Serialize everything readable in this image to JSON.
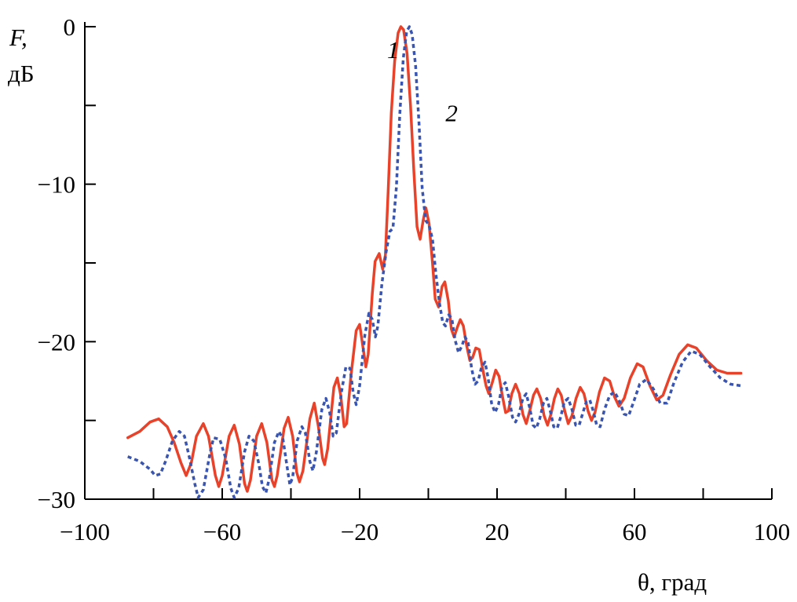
{
  "chart_data": {
    "type": "line",
    "xlabel": "θ, град",
    "ylabel_line1": "F,",
    "ylabel_line2": "дБ",
    "xlim": [
      -100,
      100
    ],
    "ylim": [
      -30,
      0
    ],
    "x_ticks": [
      -100,
      -80,
      -60,
      -40,
      -20,
      0,
      20,
      40,
      60,
      80,
      100
    ],
    "x_tick_labels": [
      "−100",
      "−60",
      "−20",
      "20",
      "60",
      "100"
    ],
    "x_tick_label_values": [
      -100,
      -60,
      -20,
      20,
      60,
      100
    ],
    "y_ticks": [
      0,
      -5,
      -10,
      -15,
      -20,
      -25,
      -30
    ],
    "y_tick_labels": [
      "0",
      "−10",
      "−20",
      "−30"
    ],
    "y_tick_label_values": [
      0,
      -10,
      -20,
      -30
    ],
    "grid": false,
    "series": [
      {
        "name": "1",
        "color": "#e8432a",
        "style": "solid",
        "points": [
          [
            -87.5,
            -26.1
          ],
          [
            -84,
            -25.7
          ],
          [
            -81,
            -25.1
          ],
          [
            -78.5,
            -24.9
          ],
          [
            -76,
            -25.4
          ],
          [
            -74,
            -26.4
          ],
          [
            -72,
            -27.7
          ],
          [
            -70.5,
            -28.5
          ],
          [
            -69,
            -27.7
          ],
          [
            -67.5,
            -26
          ],
          [
            -65.5,
            -25.2
          ],
          [
            -64,
            -26
          ],
          [
            -62,
            -28.5
          ],
          [
            -61,
            -29.2
          ],
          [
            -60,
            -28.5
          ],
          [
            -58,
            -26
          ],
          [
            -56.5,
            -25.3
          ],
          [
            -55,
            -26.5
          ],
          [
            -53.5,
            -29
          ],
          [
            -52.7,
            -29.5
          ],
          [
            -51.8,
            -28.8
          ],
          [
            -50,
            -26
          ],
          [
            -48.5,
            -25.2
          ],
          [
            -47,
            -26.4
          ],
          [
            -45.5,
            -28.8
          ],
          [
            -44.8,
            -29.2
          ],
          [
            -44,
            -28.5
          ],
          [
            -42,
            -25.5
          ],
          [
            -40.8,
            -24.8
          ],
          [
            -39.5,
            -26
          ],
          [
            -38.3,
            -28.3
          ],
          [
            -37.5,
            -28.9
          ],
          [
            -36.5,
            -28.2
          ],
          [
            -34.5,
            -24.9
          ],
          [
            -33.2,
            -23.9
          ],
          [
            -32,
            -25.4
          ],
          [
            -30.8,
            -27.4
          ],
          [
            -30.2,
            -27.8
          ],
          [
            -29.3,
            -26.8
          ],
          [
            -27.5,
            -22.9
          ],
          [
            -26.5,
            -22.3
          ],
          [
            -25.5,
            -23.4
          ],
          [
            -24.5,
            -25.4
          ],
          [
            -23.8,
            -25.2
          ],
          [
            -22.5,
            -22.1
          ],
          [
            -21,
            -19.3
          ],
          [
            -20,
            -18.9
          ],
          [
            -19,
            -20.4
          ],
          [
            -18.2,
            -21.6
          ],
          [
            -17.5,
            -20.8
          ],
          [
            -16.3,
            -16.9
          ],
          [
            -15.5,
            -14.9
          ],
          [
            -14.3,
            -14.4
          ],
          [
            -13.3,
            -15.4
          ],
          [
            -12.5,
            -14.5
          ],
          [
            -11.7,
            -10.5
          ],
          [
            -10.8,
            -5.5
          ],
          [
            -9.8,
            -2.2
          ],
          [
            -8.8,
            -0.4
          ],
          [
            -8,
            0
          ],
          [
            -7.2,
            -0.2
          ],
          [
            -6.2,
            -1.7
          ],
          [
            -5.2,
            -5
          ],
          [
            -4.2,
            -9.2
          ],
          [
            -3.3,
            -12.7
          ],
          [
            -2.4,
            -13.5
          ],
          [
            -1.5,
            -12.3
          ],
          [
            -0.7,
            -11.5
          ],
          [
            0.2,
            -12.5
          ],
          [
            1.2,
            -15
          ],
          [
            2,
            -17.3
          ],
          [
            3,
            -17.8
          ],
          [
            4,
            -16.5
          ],
          [
            4.8,
            -16.2
          ],
          [
            5.8,
            -17.4
          ],
          [
            6.7,
            -19.2
          ],
          [
            7.5,
            -19.7
          ],
          [
            8.4,
            -19.1
          ],
          [
            9.3,
            -18.6
          ],
          [
            10.2,
            -19
          ],
          [
            11.2,
            -20.3
          ],
          [
            12.1,
            -21.2
          ],
          [
            12.9,
            -21
          ],
          [
            13.8,
            -20.4
          ],
          [
            14.8,
            -20.5
          ],
          [
            15.8,
            -21.7
          ],
          [
            16.8,
            -22.8
          ],
          [
            17.6,
            -23.3
          ],
          [
            18.6,
            -22.6
          ],
          [
            19.6,
            -21.8
          ],
          [
            20.6,
            -22.2
          ],
          [
            21.5,
            -23.4
          ],
          [
            22.5,
            -24.5
          ],
          [
            23.3,
            -24.4
          ],
          [
            24.3,
            -23.3
          ],
          [
            25.4,
            -22.7
          ],
          [
            26.5,
            -23.3
          ],
          [
            27.5,
            -24.6
          ],
          [
            28.5,
            -25.2
          ],
          [
            29.5,
            -24.4
          ],
          [
            30.6,
            -23.4
          ],
          [
            31.6,
            -23
          ],
          [
            32.7,
            -23.6
          ],
          [
            33.7,
            -24.7
          ],
          [
            34.7,
            -25.3
          ],
          [
            35.7,
            -24.6
          ],
          [
            36.7,
            -23.6
          ],
          [
            37.7,
            -23
          ],
          [
            38.7,
            -23.4
          ],
          [
            39.7,
            -24.4
          ],
          [
            40.7,
            -25.2
          ],
          [
            41.8,
            -24.7
          ],
          [
            43,
            -23.6
          ],
          [
            44.2,
            -22.9
          ],
          [
            45.3,
            -23.3
          ],
          [
            46.5,
            -24.4
          ],
          [
            47.5,
            -25
          ],
          [
            48.5,
            -24.5
          ],
          [
            49.8,
            -23.2
          ],
          [
            51.3,
            -22.3
          ],
          [
            52.8,
            -22.5
          ],
          [
            54.2,
            -23.5
          ],
          [
            55.5,
            -24.1
          ],
          [
            57,
            -23.6
          ],
          [
            58.8,
            -22.3
          ],
          [
            60.8,
            -21.4
          ],
          [
            62.5,
            -21.6
          ],
          [
            64.5,
            -22.8
          ],
          [
            66.5,
            -23.7
          ],
          [
            68.3,
            -23.4
          ],
          [
            70.5,
            -22.1
          ],
          [
            73,
            -20.8
          ],
          [
            75.5,
            -20.2
          ],
          [
            78,
            -20.4
          ],
          [
            81,
            -21.2
          ],
          [
            84,
            -21.8
          ],
          [
            87,
            -22
          ],
          [
            91,
            -22
          ]
        ]
      },
      {
        "name": "2",
        "color": "#3a55b0",
        "style": "dotted",
        "points": [
          [
            -87.5,
            -27.3
          ],
          [
            -84,
            -27.6
          ],
          [
            -81,
            -28.1
          ],
          [
            -79.5,
            -28.5
          ],
          [
            -78,
            -28.4
          ],
          [
            -76.5,
            -27.6
          ],
          [
            -74.5,
            -26.3
          ],
          [
            -72.5,
            -25.7
          ],
          [
            -71,
            -26
          ],
          [
            -69.5,
            -27.4
          ],
          [
            -68,
            -29
          ],
          [
            -67,
            -29.9
          ],
          [
            -65.5,
            -29.4
          ],
          [
            -63.5,
            -27
          ],
          [
            -62.5,
            -26.1
          ],
          [
            -60.7,
            -26.2
          ],
          [
            -59,
            -27.4
          ],
          [
            -57.5,
            -29.3
          ],
          [
            -56.5,
            -29.9
          ],
          [
            -55.2,
            -29.3
          ],
          [
            -53.5,
            -27
          ],
          [
            -52.2,
            -26
          ],
          [
            -50.8,
            -26.3
          ],
          [
            -49.3,
            -27.8
          ],
          [
            -48.3,
            -29.2
          ],
          [
            -47.3,
            -29.6
          ],
          [
            -46.3,
            -28.7
          ],
          [
            -44.8,
            -26.4
          ],
          [
            -43.5,
            -25.7
          ],
          [
            -42.3,
            -26.2
          ],
          [
            -41,
            -28.1
          ],
          [
            -40.3,
            -29.1
          ],
          [
            -39.5,
            -28.6
          ],
          [
            -38.2,
            -26.3
          ],
          [
            -36.8,
            -25.4
          ],
          [
            -35.8,
            -25.8
          ],
          [
            -34.5,
            -27.6
          ],
          [
            -33.6,
            -28.2
          ],
          [
            -32.6,
            -27
          ],
          [
            -31,
            -24.3
          ],
          [
            -29.8,
            -23.6
          ],
          [
            -28.7,
            -24.5
          ],
          [
            -27.7,
            -26
          ],
          [
            -26.8,
            -25.8
          ],
          [
            -25.3,
            -23.2
          ],
          [
            -24,
            -21.6
          ],
          [
            -22.8,
            -21.7
          ],
          [
            -21.9,
            -23.2
          ],
          [
            -21,
            -24
          ],
          [
            -20,
            -22.8
          ],
          [
            -18.5,
            -19.6
          ],
          [
            -17.3,
            -18.2
          ],
          [
            -16.3,
            -18.6
          ],
          [
            -15.4,
            -19.7
          ],
          [
            -14.7,
            -19
          ],
          [
            -13.5,
            -16.3
          ],
          [
            -12.3,
            -14.3
          ],
          [
            -11.2,
            -13
          ],
          [
            -10.3,
            -12.8
          ],
          [
            -9.3,
            -10.2
          ],
          [
            -8.3,
            -5.5
          ],
          [
            -7.3,
            -2
          ],
          [
            -6.3,
            -0.3
          ],
          [
            -5.5,
            0
          ],
          [
            -4.7,
            -0.5
          ],
          [
            -3.7,
            -2.5
          ],
          [
            -2.7,
            -6.2
          ],
          [
            -1.8,
            -10.2
          ],
          [
            -0.8,
            -12.3
          ],
          [
            0.2,
            -12.6
          ],
          [
            1.2,
            -13.5
          ],
          [
            2.2,
            -15.7
          ],
          [
            3.2,
            -17.5
          ],
          [
            4.2,
            -18.8
          ],
          [
            5,
            -19
          ],
          [
            5.9,
            -18.3
          ],
          [
            6.8,
            -18.5
          ],
          [
            7.8,
            -19.9
          ],
          [
            8.8,
            -20.7
          ],
          [
            9.7,
            -20.3
          ],
          [
            10.7,
            -19.7
          ],
          [
            11.6,
            -20.1
          ],
          [
            12.6,
            -21.7
          ],
          [
            13.6,
            -22.7
          ],
          [
            14.5,
            -22.5
          ],
          [
            15.5,
            -21.6
          ],
          [
            16.5,
            -21.3
          ],
          [
            17.4,
            -22.3
          ],
          [
            18.4,
            -23.9
          ],
          [
            19.4,
            -24.5
          ],
          [
            20.4,
            -24
          ],
          [
            21.4,
            -22.9
          ],
          [
            22.4,
            -22.6
          ],
          [
            23.4,
            -23.5
          ],
          [
            24.5,
            -24.8
          ],
          [
            25.4,
            -25.1
          ],
          [
            26.4,
            -24.6
          ],
          [
            27.5,
            -23.6
          ],
          [
            28.5,
            -23.3
          ],
          [
            29.5,
            -24.2
          ],
          [
            30.5,
            -25.3
          ],
          [
            31.4,
            -25.5
          ],
          [
            32.4,
            -24.9
          ],
          [
            33.5,
            -23.9
          ],
          [
            34.5,
            -23.6
          ],
          [
            35.5,
            -24.4
          ],
          [
            36.5,
            -25.4
          ],
          [
            37.5,
            -25.5
          ],
          [
            38.5,
            -24.8
          ],
          [
            39.6,
            -23.8
          ],
          [
            40.7,
            -23.6
          ],
          [
            41.8,
            -24.3
          ],
          [
            42.9,
            -25.3
          ],
          [
            43.9,
            -25.3
          ],
          [
            45,
            -24.5
          ],
          [
            46,
            -23.8
          ],
          [
            47,
            -23.7
          ],
          [
            48,
            -24.4
          ],
          [
            49,
            -25.3
          ],
          [
            50,
            -25.4
          ],
          [
            51.3,
            -24.3
          ],
          [
            52.8,
            -23.4
          ],
          [
            54.2,
            -23.2
          ],
          [
            55.5,
            -23.7
          ],
          [
            57,
            -24.6
          ],
          [
            58.3,
            -24.7
          ],
          [
            59.8,
            -23.8
          ],
          [
            61.5,
            -22.7
          ],
          [
            63.5,
            -22.4
          ],
          [
            65.5,
            -23
          ],
          [
            67.5,
            -23.9
          ],
          [
            69.5,
            -23.9
          ],
          [
            71.5,
            -22.6
          ],
          [
            74,
            -21.3
          ],
          [
            76.5,
            -20.6
          ],
          [
            79,
            -20.8
          ],
          [
            82,
            -21.6
          ],
          [
            85,
            -22.3
          ],
          [
            88,
            -22.7
          ],
          [
            91,
            -22.8
          ]
        ]
      }
    ],
    "annotations": [
      {
        "text": "1",
        "x": -12,
        "y": -2,
        "series": "1"
      },
      {
        "text": "2",
        "x": 5,
        "y": -6,
        "series": "2"
      }
    ]
  }
}
